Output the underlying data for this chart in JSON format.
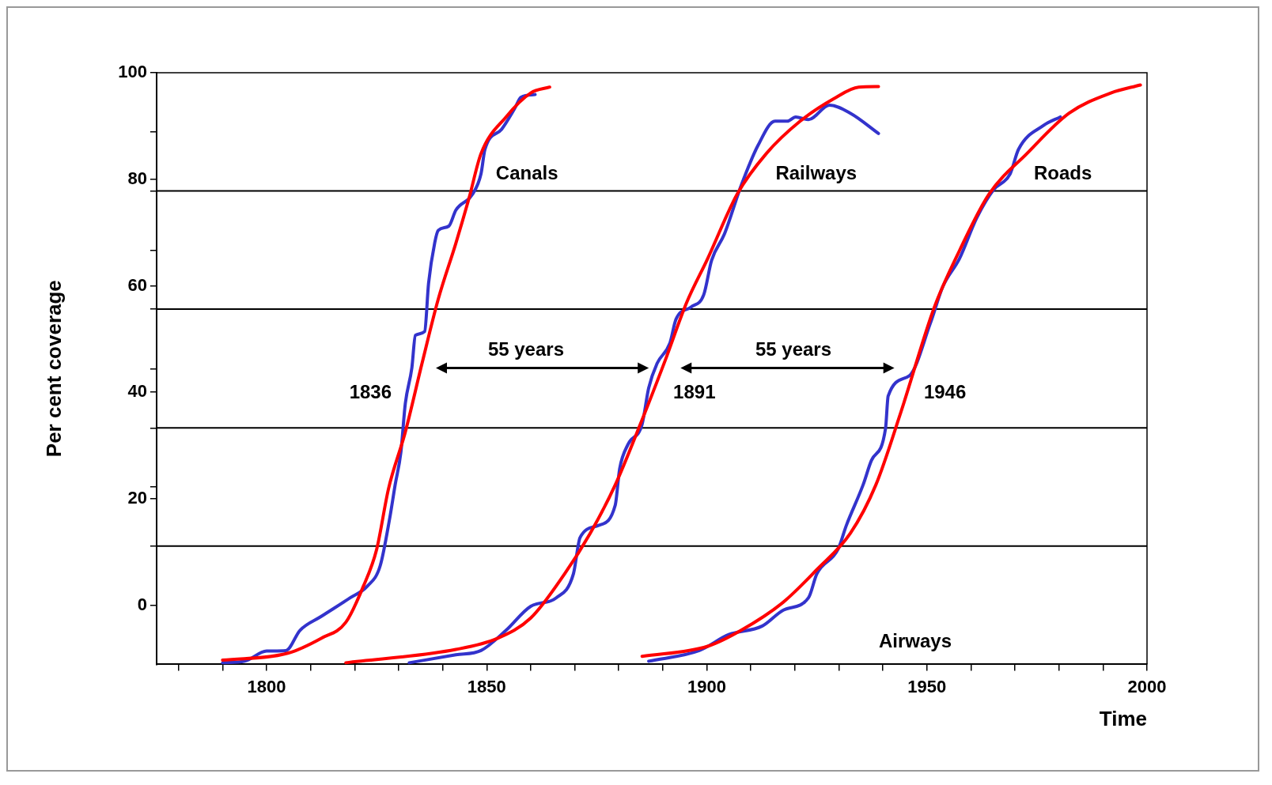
{
  "chart_data": {
    "type": "line",
    "xlabel": "Time",
    "ylabel": "Per cent coverage",
    "xlim": [
      1775,
      2000
    ],
    "ylim": [
      -11.1,
      100
    ],
    "xticks": [
      {
        "value": 1780,
        "label": null
      },
      {
        "value": 1790,
        "label": null
      },
      1800,
      {
        "value": 1810,
        "label": null
      },
      {
        "value": 1820,
        "label": null
      },
      {
        "value": 1830,
        "label": null
      },
      {
        "value": 1840,
        "label": null
      },
      1850,
      {
        "value": 1860,
        "label": null
      },
      {
        "value": 1870,
        "label": null
      },
      {
        "value": 1880,
        "label": null
      },
      {
        "value": 1890,
        "label": null
      },
      1900,
      {
        "value": 1910,
        "label": null
      },
      {
        "value": 1920,
        "label": null
      },
      {
        "value": 1930,
        "label": null
      },
      {
        "value": 1940,
        "label": null
      },
      1950,
      {
        "value": 1960,
        "label": null
      },
      {
        "value": 1970,
        "label": null
      },
      {
        "value": 1980,
        "label": null
      },
      {
        "value": 1990,
        "label": null
      },
      2000
    ],
    "yticks": [
      0,
      {
        "value": 11.1,
        "label": null
      },
      20,
      {
        "value": 22.2,
        "label": null
      },
      {
        "value": 33.3,
        "label": null
      },
      40,
      {
        "value": 44.4,
        "label": null
      },
      {
        "value": 55.6,
        "label": null
      },
      60,
      {
        "value": 66.7,
        "label": null
      },
      {
        "value": 77.8,
        "label": null
      },
      80,
      {
        "value": 88.9,
        "label": null
      },
      100
    ],
    "grid": false,
    "legend": false,
    "marker": "none",
    "line_style": "solid",
    "ref_lines": [
      {
        "axis": "y",
        "value": 77.8,
        "color": "#000000"
      },
      {
        "axis": "y",
        "value": 55.6,
        "color": "#000000"
      },
      {
        "axis": "y",
        "value": 33.3,
        "color": "#000000"
      },
      {
        "axis": "y",
        "value": 11.1,
        "color": "#000000"
      }
    ],
    "annotations": [
      "Canals",
      "Railways",
      "Roads",
      "Airways",
      "1836",
      "1891",
      "1946",
      "55 years",
      "55 years"
    ],
    "series": [
      {
        "color": "#ff0000",
        "x": [
          1790,
          1804.8,
          1812.4,
          1818,
          1822,
          1825,
          1827.7,
          1831.5,
          1835.3,
          1839,
          1843,
          1846,
          1848.7,
          1854.4,
          1860,
          1864.3
        ],
        "values": [
          -10.3,
          -9,
          -6.2,
          -3.2,
          3.6,
          10.5,
          21.9,
          32.5,
          45.4,
          57.5,
          68,
          76.5,
          84.8,
          91.7,
          96.2,
          97.3
        ]
      },
      {
        "color": "#3333cc",
        "x": [
          1790,
          1795,
          1800,
          1804.4,
          1807.6,
          1812.4,
          1819,
          1822.9,
          1825.8,
          1828,
          1829.2,
          1830.5,
          1831.5,
          1833,
          1833.8,
          1835.9,
          1836.8,
          1838.2,
          1839,
          1841.4,
          1843,
          1846.8,
          1848.7,
          1849.6,
          1853.4,
          1856.3,
          1857.8,
          1861
        ],
        "values": [
          -10.8,
          -10.5,
          -8.6,
          -8.5,
          -4.7,
          -2.1,
          1.4,
          3.6,
          7.4,
          16.5,
          22.6,
          28.7,
          37.8,
          44.6,
          50.7,
          51.4,
          60.5,
          68.1,
          70.4,
          71.2,
          74.2,
          77.2,
          81,
          85.6,
          89.4,
          93.2,
          95.4,
          95.9
        ]
      },
      {
        "color": "#ff0000",
        "x": [
          1818,
          1843,
          1852.5,
          1860,
          1867.7,
          1873.5,
          1879.2,
          1884.9,
          1890.6,
          1895.4,
          1900.2,
          1906.9,
          1913.5,
          1921.2,
          1928.8,
          1934.5,
          1939
        ],
        "values": [
          -10.8,
          -8.3,
          -6.2,
          -2.4,
          5.9,
          13.5,
          22.6,
          34,
          46.1,
          56.8,
          65.1,
          77.2,
          84.8,
          90.9,
          95.1,
          97.3,
          97.4
        ]
      },
      {
        "color": "#3333cc",
        "x": [
          1832.4,
          1843,
          1848.7,
          1854.4,
          1860,
          1865.8,
          1869.7,
          1871.2,
          1875.4,
          1879.2,
          1880.2,
          1882.1,
          1885.3,
          1886.8,
          1888.7,
          1891.6,
          1893,
          1896.4,
          1899.3,
          1901.1,
          1904,
          1907.8,
          1911.6,
          1915.5,
          1918.3,
          1920.2,
          1923.1,
          1927.9,
          1932.6,
          1939
        ],
        "values": [
          -10.8,
          -9.3,
          -8.5,
          -4.7,
          -0.2,
          1.4,
          5.9,
          12.7,
          15,
          18.8,
          25.6,
          30.2,
          34,
          40.8,
          45.4,
          49.2,
          53.7,
          56,
          58.3,
          64.8,
          69.7,
          78.8,
          86.3,
          90.9,
          90.9,
          91.7,
          91.2,
          93.9,
          92.4,
          88.6
        ]
      },
      {
        "color": "#ff0000",
        "x": [
          1885.3,
          1900.2,
          1907.8,
          1917.4,
          1925,
          1932.6,
          1938.4,
          1944.1,
          1951.7,
          1957.4,
          1964.1,
          1972.7,
          1982.3,
          1991.8,
          1998.5
        ],
        "values": [
          -9.6,
          -7.7,
          -4.7,
          0.6,
          6.7,
          13.5,
          22.6,
          36.3,
          56,
          66.6,
          77.2,
          84.8,
          92.4,
          96.2,
          97.7
        ]
      },
      {
        "color": "#3333cc",
        "x": [
          1886.8,
          1898.3,
          1905,
          1912.6,
          1917.4,
          1923.1,
          1925,
          1929.8,
          1931.7,
          1935.5,
          1937.4,
          1940.6,
          1941.2,
          1946,
          1950.8,
          1953.6,
          1957.4,
          1961.3,
          1965.1,
          1968.9,
          1970.8,
          1976.5,
          1980.3
        ],
        "values": [
          -10.5,
          -8.5,
          -5.5,
          -3.9,
          -0.9,
          1.4,
          5.9,
          10.5,
          15,
          22.6,
          27.2,
          33.2,
          39.3,
          43.1,
          53,
          59.8,
          65.1,
          72.7,
          78,
          81,
          85.6,
          90.1,
          91.7
        ]
      }
    ]
  }
}
